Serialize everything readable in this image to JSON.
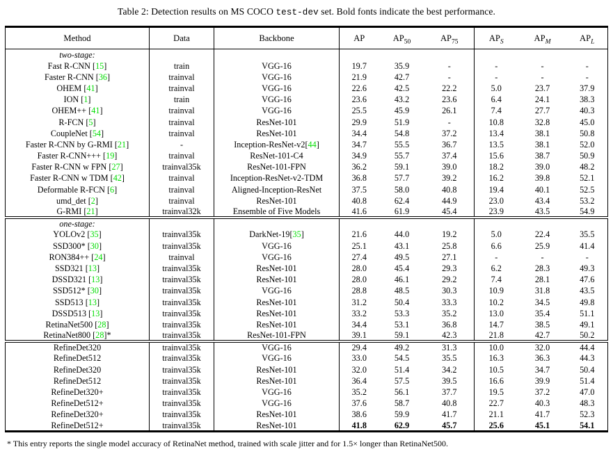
{
  "caption": {
    "prefix": "Table 2: Detection results on MS COCO ",
    "code": "test-dev",
    "suffix": " set. Bold fonts indicate the best performance."
  },
  "footnote": {
    "marker": "*",
    "text": " This entry reports the single model accuracy of RetinaNet method, trained with scale jitter and for 1.5× longer than RetinaNet500."
  },
  "colors": {
    "citation_green": "#00dc00",
    "text": "#000000",
    "background": "#ffffff"
  },
  "table": {
    "citation_brackets": [
      "[",
      "]"
    ],
    "columns": [
      {
        "key": "method",
        "base": "Method"
      },
      {
        "key": "data",
        "base": "Data"
      },
      {
        "key": "backbone",
        "base": "Backbone"
      },
      {
        "key": "ap",
        "base": "AP"
      },
      {
        "key": "ap50",
        "base": "AP",
        "sub": "50"
      },
      {
        "key": "ap75",
        "base": "AP",
        "sub": "75"
      },
      {
        "key": "aps",
        "base": "AP",
        "sub": "S",
        "italic_sub": true
      },
      {
        "key": "apm",
        "base": "AP",
        "sub": "M",
        "italic_sub": true
      },
      {
        "key": "apl",
        "base": "AP",
        "sub": "L",
        "italic_sub": true
      }
    ],
    "sections": [
      {
        "id": "two-stage",
        "label": "two-stage:",
        "rows": [
          {
            "method": {
              "name": "Fast R-CNN",
              "cite": "15"
            },
            "data": "train",
            "backbone": {
              "name": "VGG-16"
            },
            "values": [
              "19.7",
              "35.9",
              "-",
              "-",
              "-",
              "-"
            ]
          },
          {
            "method": {
              "name": "Faster R-CNN",
              "cite": "36"
            },
            "data": "trainval",
            "backbone": {
              "name": "VGG-16"
            },
            "values": [
              "21.9",
              "42.7",
              "-",
              "-",
              "-",
              "-"
            ]
          },
          {
            "method": {
              "name": "OHEM",
              "cite": "41"
            },
            "data": "trainval",
            "backbone": {
              "name": "VGG-16"
            },
            "values": [
              "22.6",
              "42.5",
              "22.2",
              "5.0",
              "23.7",
              "37.9"
            ]
          },
          {
            "method": {
              "name": "ION",
              "cite": "1"
            },
            "data": "train",
            "backbone": {
              "name": "VGG-16"
            },
            "values": [
              "23.6",
              "43.2",
              "23.6",
              "6.4",
              "24.1",
              "38.3"
            ]
          },
          {
            "method": {
              "name": "OHEM++",
              "cite": "41"
            },
            "data": "trainval",
            "backbone": {
              "name": "VGG-16"
            },
            "values": [
              "25.5",
              "45.9",
              "26.1",
              "7.4",
              "27.7",
              "40.3"
            ]
          },
          {
            "method": {
              "name": "R-FCN",
              "cite": "5"
            },
            "data": "trainval",
            "backbone": {
              "name": "ResNet-101"
            },
            "values": [
              "29.9",
              "51.9",
              "-",
              "10.8",
              "32.8",
              "45.0"
            ]
          },
          {
            "method": {
              "name": "CoupleNet",
              "cite": "54"
            },
            "data": "trainval",
            "backbone": {
              "name": "ResNet-101"
            },
            "values": [
              "34.4",
              "54.8",
              "37.2",
              "13.4",
              "38.1",
              "50.8"
            ]
          },
          {
            "method": {
              "name": "Faster R-CNN by G-RMI",
              "cite": "21"
            },
            "data": "-",
            "backbone": {
              "name": "Inception-ResNet-v2",
              "cite": "44"
            },
            "values": [
              "34.7",
              "55.5",
              "36.7",
              "13.5",
              "38.1",
              "52.0"
            ]
          },
          {
            "method": {
              "name": "Faster R-CNN+++",
              "cite": "19"
            },
            "data": "trainval",
            "backbone": {
              "name": "ResNet-101-C4"
            },
            "values": [
              "34.9",
              "55.7",
              "37.4",
              "15.6",
              "38.7",
              "50.9"
            ]
          },
          {
            "method": {
              "name": "Faster R-CNN w FPN",
              "cite": "27"
            },
            "data": "trainval35k",
            "backbone": {
              "name": "ResNet-101-FPN"
            },
            "values": [
              "36.2",
              "59.1",
              "39.0",
              "18.2",
              "39.0",
              "48.2"
            ]
          },
          {
            "method": {
              "name": "Faster R-CNN w TDM",
              "cite": "42"
            },
            "data": "trainval",
            "backbone": {
              "name": "Inception-ResNet-v2-TDM"
            },
            "values": [
              "36.8",
              "57.7",
              "39.2",
              "16.2",
              "39.8",
              "52.1"
            ]
          },
          {
            "method": {
              "name": "Deformable R-FCN",
              "cite": "6"
            },
            "data": "trainval",
            "backbone": {
              "name": "Aligned-Inception-ResNet"
            },
            "values": [
              "37.5",
              "58.0",
              "40.8",
              "19.4",
              "40.1",
              "52.5"
            ]
          },
          {
            "method": {
              "name": "umd_det",
              "cite": "2"
            },
            "data": "trainval",
            "backbone": {
              "name": "ResNet-101"
            },
            "values": [
              "40.8",
              "62.4",
              "44.9",
              "23.0",
              "43.4",
              "53.2"
            ]
          },
          {
            "method": {
              "name": "G-RMI",
              "cite": "21"
            },
            "data": "trainval32k",
            "backbone": {
              "name": "Ensemble of Five Models"
            },
            "values": [
              "41.6",
              "61.9",
              "45.4",
              "23.9",
              "43.5",
              "54.9"
            ]
          }
        ]
      },
      {
        "id": "one-stage",
        "label": "one-stage:",
        "rows": [
          {
            "method": {
              "name": "YOLOv2",
              "cite": "35"
            },
            "data": "trainval35k",
            "backbone": {
              "name": "DarkNet-19",
              "cite": "35"
            },
            "values": [
              "21.6",
              "44.0",
              "19.2",
              "5.0",
              "22.4",
              "35.5"
            ]
          },
          {
            "method": {
              "name": "SSD300*",
              "cite": "30"
            },
            "data": "trainval35k",
            "backbone": {
              "name": "VGG-16"
            },
            "values": [
              "25.1",
              "43.1",
              "25.8",
              "6.6",
              "25.9",
              "41.4"
            ]
          },
          {
            "method": {
              "name": "RON384++",
              "cite": "24"
            },
            "data": "trainval",
            "backbone": {
              "name": "VGG-16"
            },
            "values": [
              "27.4",
              "49.5",
              "27.1",
              "-",
              "-",
              "-"
            ]
          },
          {
            "method": {
              "name": "SSD321",
              "cite": "13"
            },
            "data": "trainval35k",
            "backbone": {
              "name": "ResNet-101"
            },
            "values": [
              "28.0",
              "45.4",
              "29.3",
              "6.2",
              "28.3",
              "49.3"
            ]
          },
          {
            "method": {
              "name": "DSSD321",
              "cite": "13"
            },
            "data": "trainval35k",
            "backbone": {
              "name": "ResNet-101"
            },
            "values": [
              "28.0",
              "46.1",
              "29.2",
              "7.4",
              "28.1",
              "47.6"
            ]
          },
          {
            "method": {
              "name": "SSD512*",
              "cite": "30"
            },
            "data": "trainval35k",
            "backbone": {
              "name": "VGG-16"
            },
            "values": [
              "28.8",
              "48.5",
              "30.3",
              "10.9",
              "31.8",
              "43.5"
            ]
          },
          {
            "method": {
              "name": "SSD513",
              "cite": "13"
            },
            "data": "trainval35k",
            "backbone": {
              "name": "ResNet-101"
            },
            "values": [
              "31.2",
              "50.4",
              "33.3",
              "10.2",
              "34.5",
              "49.8"
            ]
          },
          {
            "method": {
              "name": "DSSD513",
              "cite": "13"
            },
            "data": "trainval35k",
            "backbone": {
              "name": "ResNet-101"
            },
            "values": [
              "33.2",
              "53.3",
              "35.2",
              "13.0",
              "35.4",
              "51.1"
            ]
          },
          {
            "method": {
              "name": "RetinaNet500",
              "cite": "28"
            },
            "data": "trainval35k",
            "backbone": {
              "name": "ResNet-101"
            },
            "values": [
              "34.4",
              "53.1",
              "36.8",
              "14.7",
              "38.5",
              "49.1"
            ]
          },
          {
            "method": {
              "name": "RetinaNet800",
              "cite": "28",
              "post": "*"
            },
            "data": "trainval35k",
            "backbone": {
              "name": "ResNet-101-FPN"
            },
            "values": [
              "39.1",
              "59.1",
              "42.3",
              "21.8",
              "42.7",
              "50.2"
            ]
          }
        ]
      },
      {
        "id": "refinedet",
        "label": null,
        "rows": [
          {
            "method": {
              "name": "RefineDet320"
            },
            "data": "trainval35k",
            "backbone": {
              "name": "VGG-16"
            },
            "values": [
              "29.4",
              "49.2",
              "31.3",
              "10.0",
              "32.0",
              "44.4"
            ]
          },
          {
            "method": {
              "name": "RefineDet512"
            },
            "data": "trainval35k",
            "backbone": {
              "name": "VGG-16"
            },
            "values": [
              "33.0",
              "54.5",
              "35.5",
              "16.3",
              "36.3",
              "44.3"
            ]
          },
          {
            "method": {
              "name": "RefineDet320"
            },
            "data": "trainval35k",
            "backbone": {
              "name": "ResNet-101"
            },
            "values": [
              "32.0",
              "51.4",
              "34.2",
              "10.5",
              "34.7",
              "50.4"
            ]
          },
          {
            "method": {
              "name": "RefineDet512"
            },
            "data": "trainval35k",
            "backbone": {
              "name": "ResNet-101"
            },
            "values": [
              "36.4",
              "57.5",
              "39.5",
              "16.6",
              "39.9",
              "51.4"
            ]
          },
          {
            "method": {
              "name": "RefineDet320+"
            },
            "data": "trainval35k",
            "backbone": {
              "name": "VGG-16"
            },
            "values": [
              "35.2",
              "56.1",
              "37.7",
              "19.5",
              "37.2",
              "47.0"
            ]
          },
          {
            "method": {
              "name": "RefineDet512+"
            },
            "data": "trainval35k",
            "backbone": {
              "name": "VGG-16"
            },
            "values": [
              "37.6",
              "58.7",
              "40.8",
              "22.7",
              "40.3",
              "48.3"
            ]
          },
          {
            "method": {
              "name": "RefineDet320+"
            },
            "data": "trainval35k",
            "backbone": {
              "name": "ResNet-101"
            },
            "values": [
              "38.6",
              "59.9",
              "41.7",
              "21.1",
              "41.7",
              "52.3"
            ]
          },
          {
            "method": {
              "name": "RefineDet512+"
            },
            "data": "trainval35k",
            "backbone": {
              "name": "ResNet-101"
            },
            "values": [
              "41.8",
              "62.9",
              "45.7",
              "25.6",
              "45.1",
              "54.1"
            ],
            "bold": true
          }
        ]
      }
    ]
  }
}
